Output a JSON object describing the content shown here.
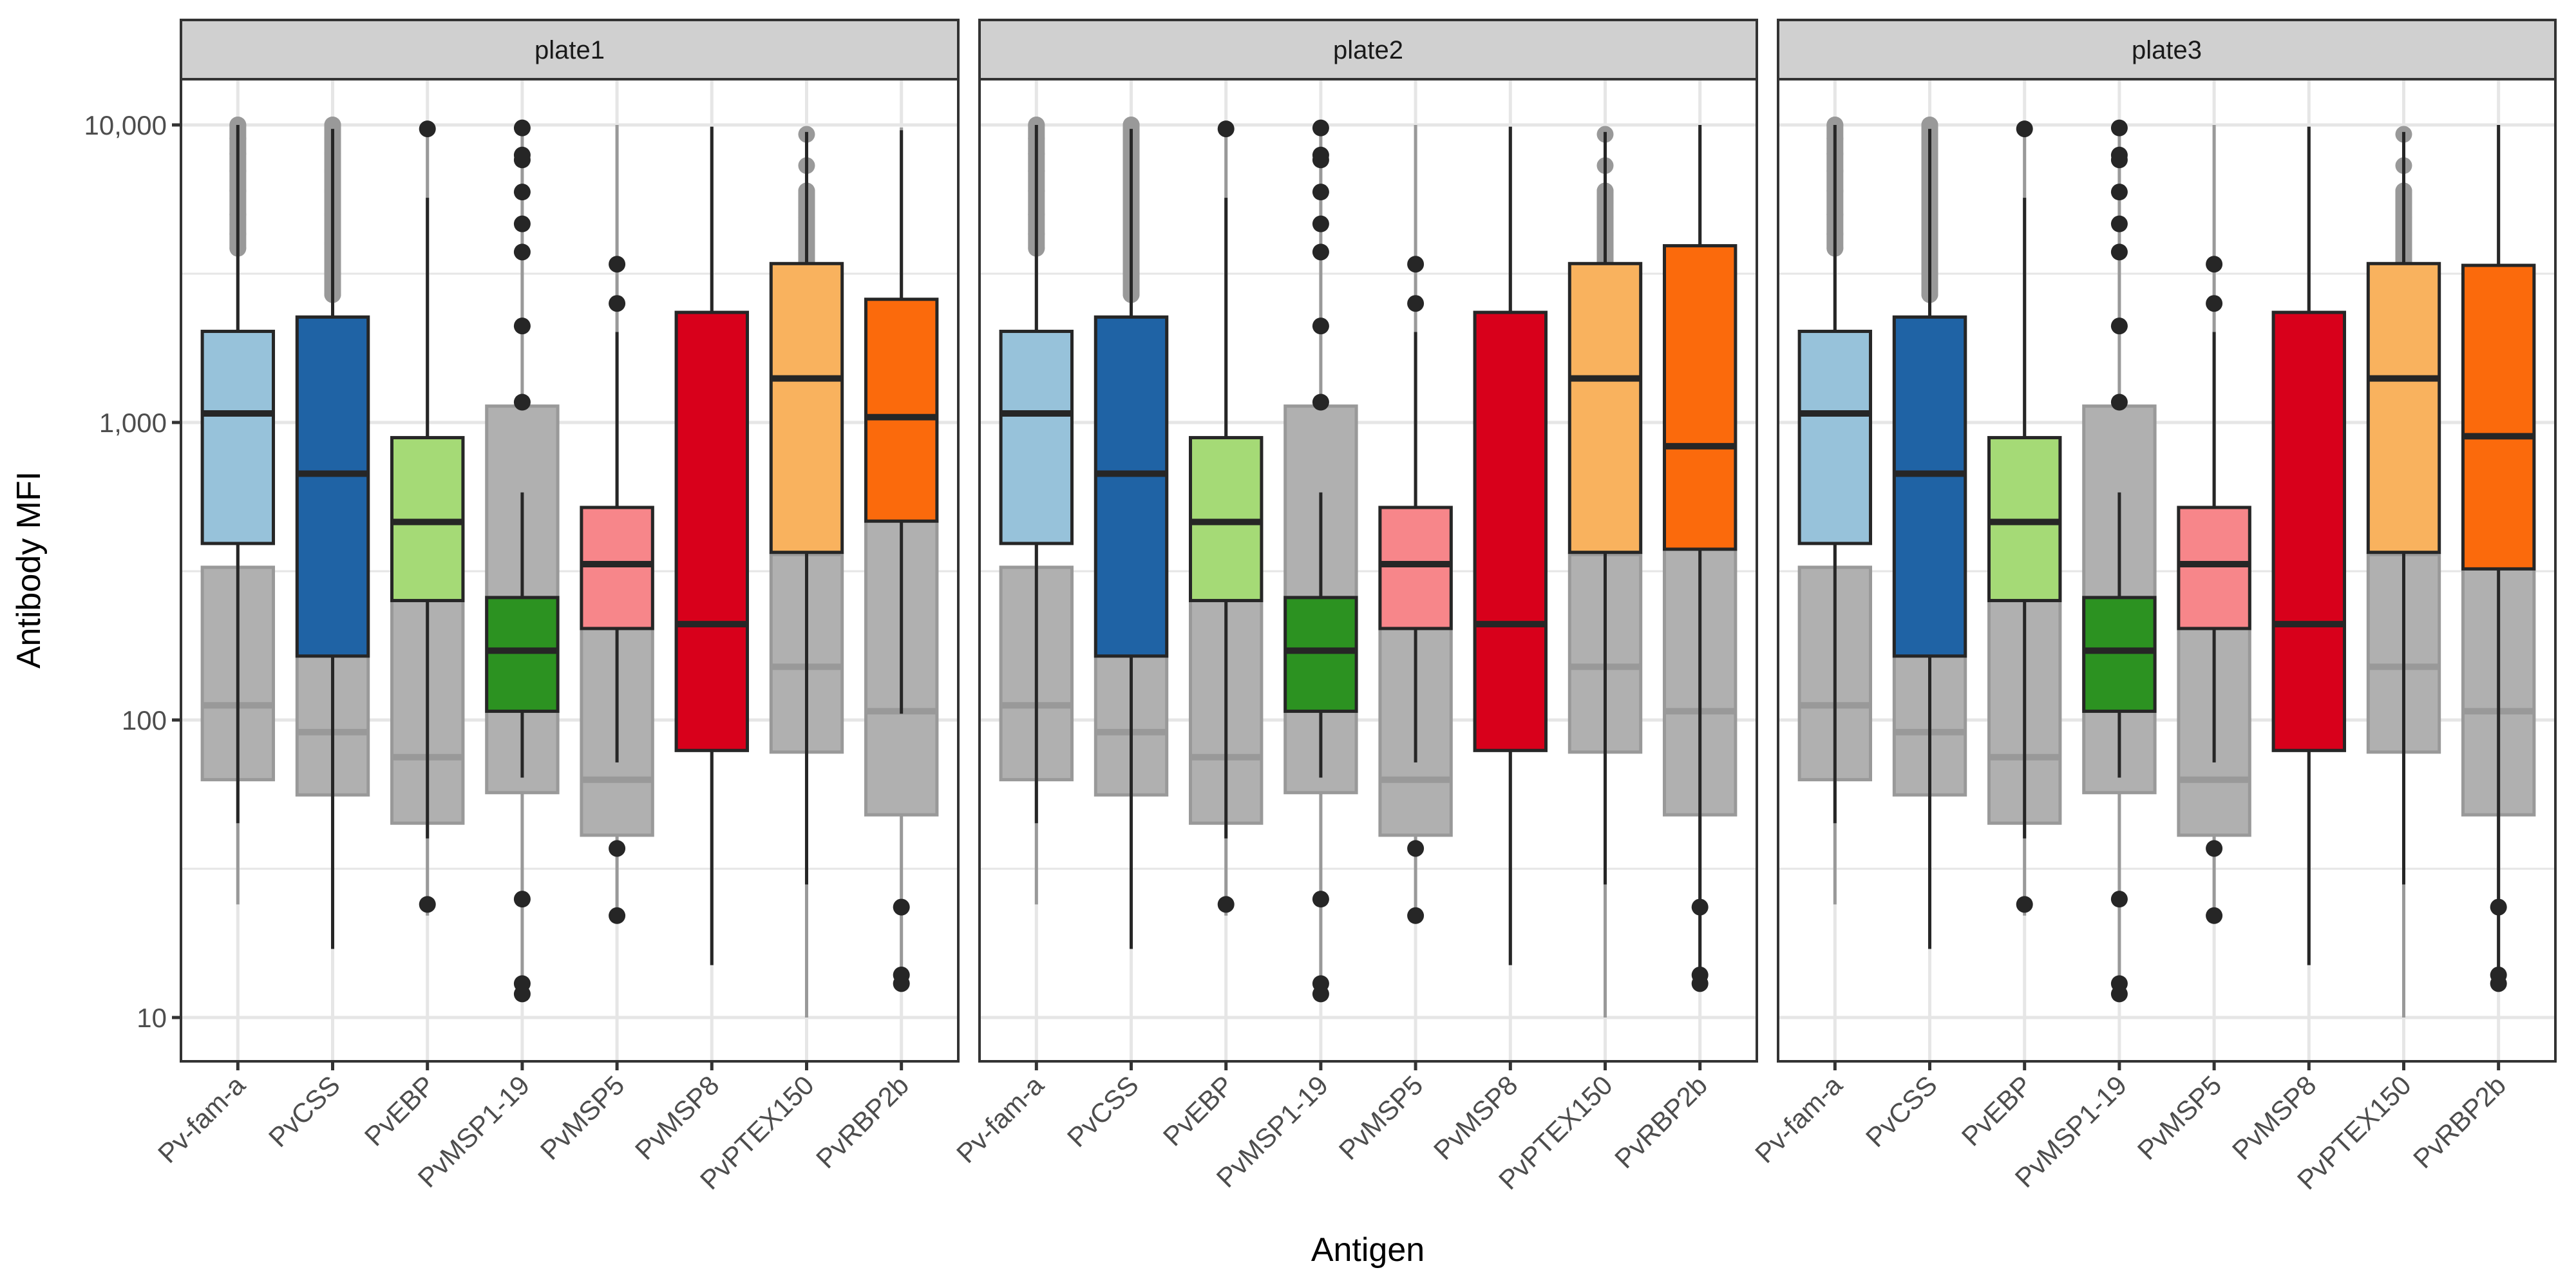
{
  "chart_data": {
    "type": "boxplot",
    "title": "",
    "xlabel": "Antigen",
    "ylabel": "Antibody MFI",
    "yscale": "log10",
    "ylim": [
      7,
      14000
    ],
    "yticks": [
      10,
      100,
      1000,
      10000
    ],
    "ytick_labels": [
      "10",
      "100",
      "1,000",
      "10,000"
    ],
    "grid": true,
    "facet_by": "plate",
    "categories": [
      "Pv-fam-a",
      "PvCSS",
      "PvEBP",
      "PvMSP1-19",
      "PvMSP5",
      "PvMSP8",
      "PvPTEX150",
      "PvRBP2b"
    ],
    "colors": {
      "Pv-fam-a": "#97C2DA",
      "PvCSS": "#1F63A5",
      "PvEBP": "#A5DA76",
      "PvMSP1-19": "#2C9221",
      "PvMSP5": "#F7868A",
      "PvMSP8": "#D8001B",
      "PvPTEX150": "#F9B25E",
      "PvRBP2b": "#FB6A0C",
      "reference_fill": "#B0B0B0",
      "reference_line": "#999999",
      "outline": "#262626",
      "strip_fill": "#D0D0D0",
      "grid": "#E6E6E6"
    },
    "reference_series": {
      "name": "background (grey)",
      "boxes": [
        {
          "category": "Pv-fam-a",
          "lower": 24,
          "q1": 63,
          "median": 112,
          "q3": 326,
          "upper": 10000,
          "outliers": [
            3850,
            4300,
            5000,
            6000,
            7000,
            8000,
            9000,
            10000
          ]
        },
        {
          "category": "PvCSS",
          "lower": 17,
          "q1": 56,
          "median": 91,
          "q3": 2260,
          "upper": 9700,
          "outliers": [
            2690,
            3200,
            4000,
            5000,
            6000,
            7000,
            8000,
            9000,
            10000
          ]
        },
        {
          "category": "PvEBP",
          "lower": 22,
          "q1": 45,
          "median": 75,
          "q3": 889,
          "upper": 9700,
          "outliers": [
            9700,
            24
          ]
        },
        {
          "category": "PvMSP1-19",
          "lower": 12,
          "q1": 57,
          "median": 171,
          "q3": 1135,
          "upper": 9770,
          "outliers": [
            9770,
            7920,
            7630,
            5950,
            4650,
            3740,
            2110,
            1170,
            25,
            13,
            12
          ]
        },
        {
          "category": "PvMSP5",
          "lower": 22,
          "q1": 41,
          "median": 63,
          "q3": 518,
          "upper": 10000,
          "outliers": [
            3404,
            2512,
            37,
            22
          ]
        },
        {
          "category": "PvMSP8",
          "lower": 15,
          "q1": 79,
          "median": 210,
          "q3": 2344,
          "upper": 9863,
          "outliers": []
        },
        {
          "category": "PvPTEX150",
          "lower": 10,
          "q1": 78,
          "median": 151,
          "q3": 360,
          "upper": 9300,
          "outliers": [
            3400,
            3800,
            4300,
            4900,
            5500,
            6000,
            7300,
            9300
          ]
        },
        {
          "category": "PvRBP2b",
          "lower": 13,
          "q1": 48,
          "median": 107,
          "q3": 466,
          "upper": 9800,
          "outliers": [
            23.5,
            13.9,
            13
          ]
        }
      ]
    },
    "panels": [
      {
        "strip": "plate1",
        "boxes": [
          {
            "category": "Pv-fam-a",
            "lower": 45,
            "q1": 392,
            "median": 1072,
            "q3": 2024,
            "upper": 10000
          },
          {
            "category": "PvCSS",
            "lower": 17,
            "q1": 164,
            "median": 673,
            "q3": 2261,
            "upper": 9700
          },
          {
            "category": "PvEBP",
            "lower": 40,
            "q1": 252,
            "median": 463,
            "q3": 889,
            "upper": 5690
          },
          {
            "category": "PvMSP1-19",
            "lower": 64,
            "q1": 107,
            "median": 171,
            "q3": 258,
            "upper": 582
          },
          {
            "category": "PvMSP5",
            "lower": 72,
            "q1": 203,
            "median": 334,
            "q3": 518,
            "upper": 2014
          },
          {
            "category": "PvMSP8",
            "lower": 15,
            "q1": 79,
            "median": 210,
            "q3": 2344,
            "upper": 9863
          },
          {
            "category": "PvPTEX150",
            "lower": 28,
            "q1": 366,
            "median": 1406,
            "q3": 3420,
            "upper": 9470
          },
          {
            "category": "PvRBP2b",
            "lower": 105,
            "q1": 466,
            "median": 1042,
            "q3": 2594,
            "upper": 9600
          }
        ]
      },
      {
        "strip": "plate2",
        "boxes": [
          {
            "category": "Pv-fam-a",
            "lower": 45,
            "q1": 392,
            "median": 1072,
            "q3": 2024,
            "upper": 10000
          },
          {
            "category": "PvCSS",
            "lower": 17,
            "q1": 164,
            "median": 673,
            "q3": 2261,
            "upper": 9700
          },
          {
            "category": "PvEBP",
            "lower": 40,
            "q1": 252,
            "median": 463,
            "q3": 889,
            "upper": 5690
          },
          {
            "category": "PvMSP1-19",
            "lower": 64,
            "q1": 107,
            "median": 171,
            "q3": 258,
            "upper": 582
          },
          {
            "category": "PvMSP5",
            "lower": 72,
            "q1": 203,
            "median": 334,
            "q3": 518,
            "upper": 2014
          },
          {
            "category": "PvMSP8",
            "lower": 15,
            "q1": 79,
            "median": 210,
            "q3": 2344,
            "upper": 9863
          },
          {
            "category": "PvPTEX150",
            "lower": 28,
            "q1": 366,
            "median": 1406,
            "q3": 3420,
            "upper": 9470
          },
          {
            "category": "PvRBP2b",
            "lower": 13,
            "q1": 375,
            "median": 832,
            "q3": 3926,
            "upper": 10000
          }
        ]
      },
      {
        "strip": "plate3",
        "boxes": [
          {
            "category": "Pv-fam-a",
            "lower": 45,
            "q1": 392,
            "median": 1072,
            "q3": 2024,
            "upper": 10000
          },
          {
            "category": "PvCSS",
            "lower": 17,
            "q1": 164,
            "median": 673,
            "q3": 2261,
            "upper": 9700
          },
          {
            "category": "PvEBP",
            "lower": 40,
            "q1": 252,
            "median": 463,
            "q3": 889,
            "upper": 5690
          },
          {
            "category": "PvMSP1-19",
            "lower": 64,
            "q1": 107,
            "median": 171,
            "q3": 258,
            "upper": 582
          },
          {
            "category": "PvMSP5",
            "lower": 72,
            "q1": 203,
            "median": 334,
            "q3": 518,
            "upper": 2014
          },
          {
            "category": "PvMSP8",
            "lower": 15,
            "q1": 79,
            "median": 210,
            "q3": 2344,
            "upper": 9863
          },
          {
            "category": "PvPTEX150",
            "lower": 28,
            "q1": 366,
            "median": 1406,
            "q3": 3420,
            "upper": 9470
          },
          {
            "category": "PvRBP2b",
            "lower": 13,
            "q1": 322,
            "median": 899,
            "q3": 3373,
            "upper": 10000
          }
        ]
      }
    ]
  }
}
